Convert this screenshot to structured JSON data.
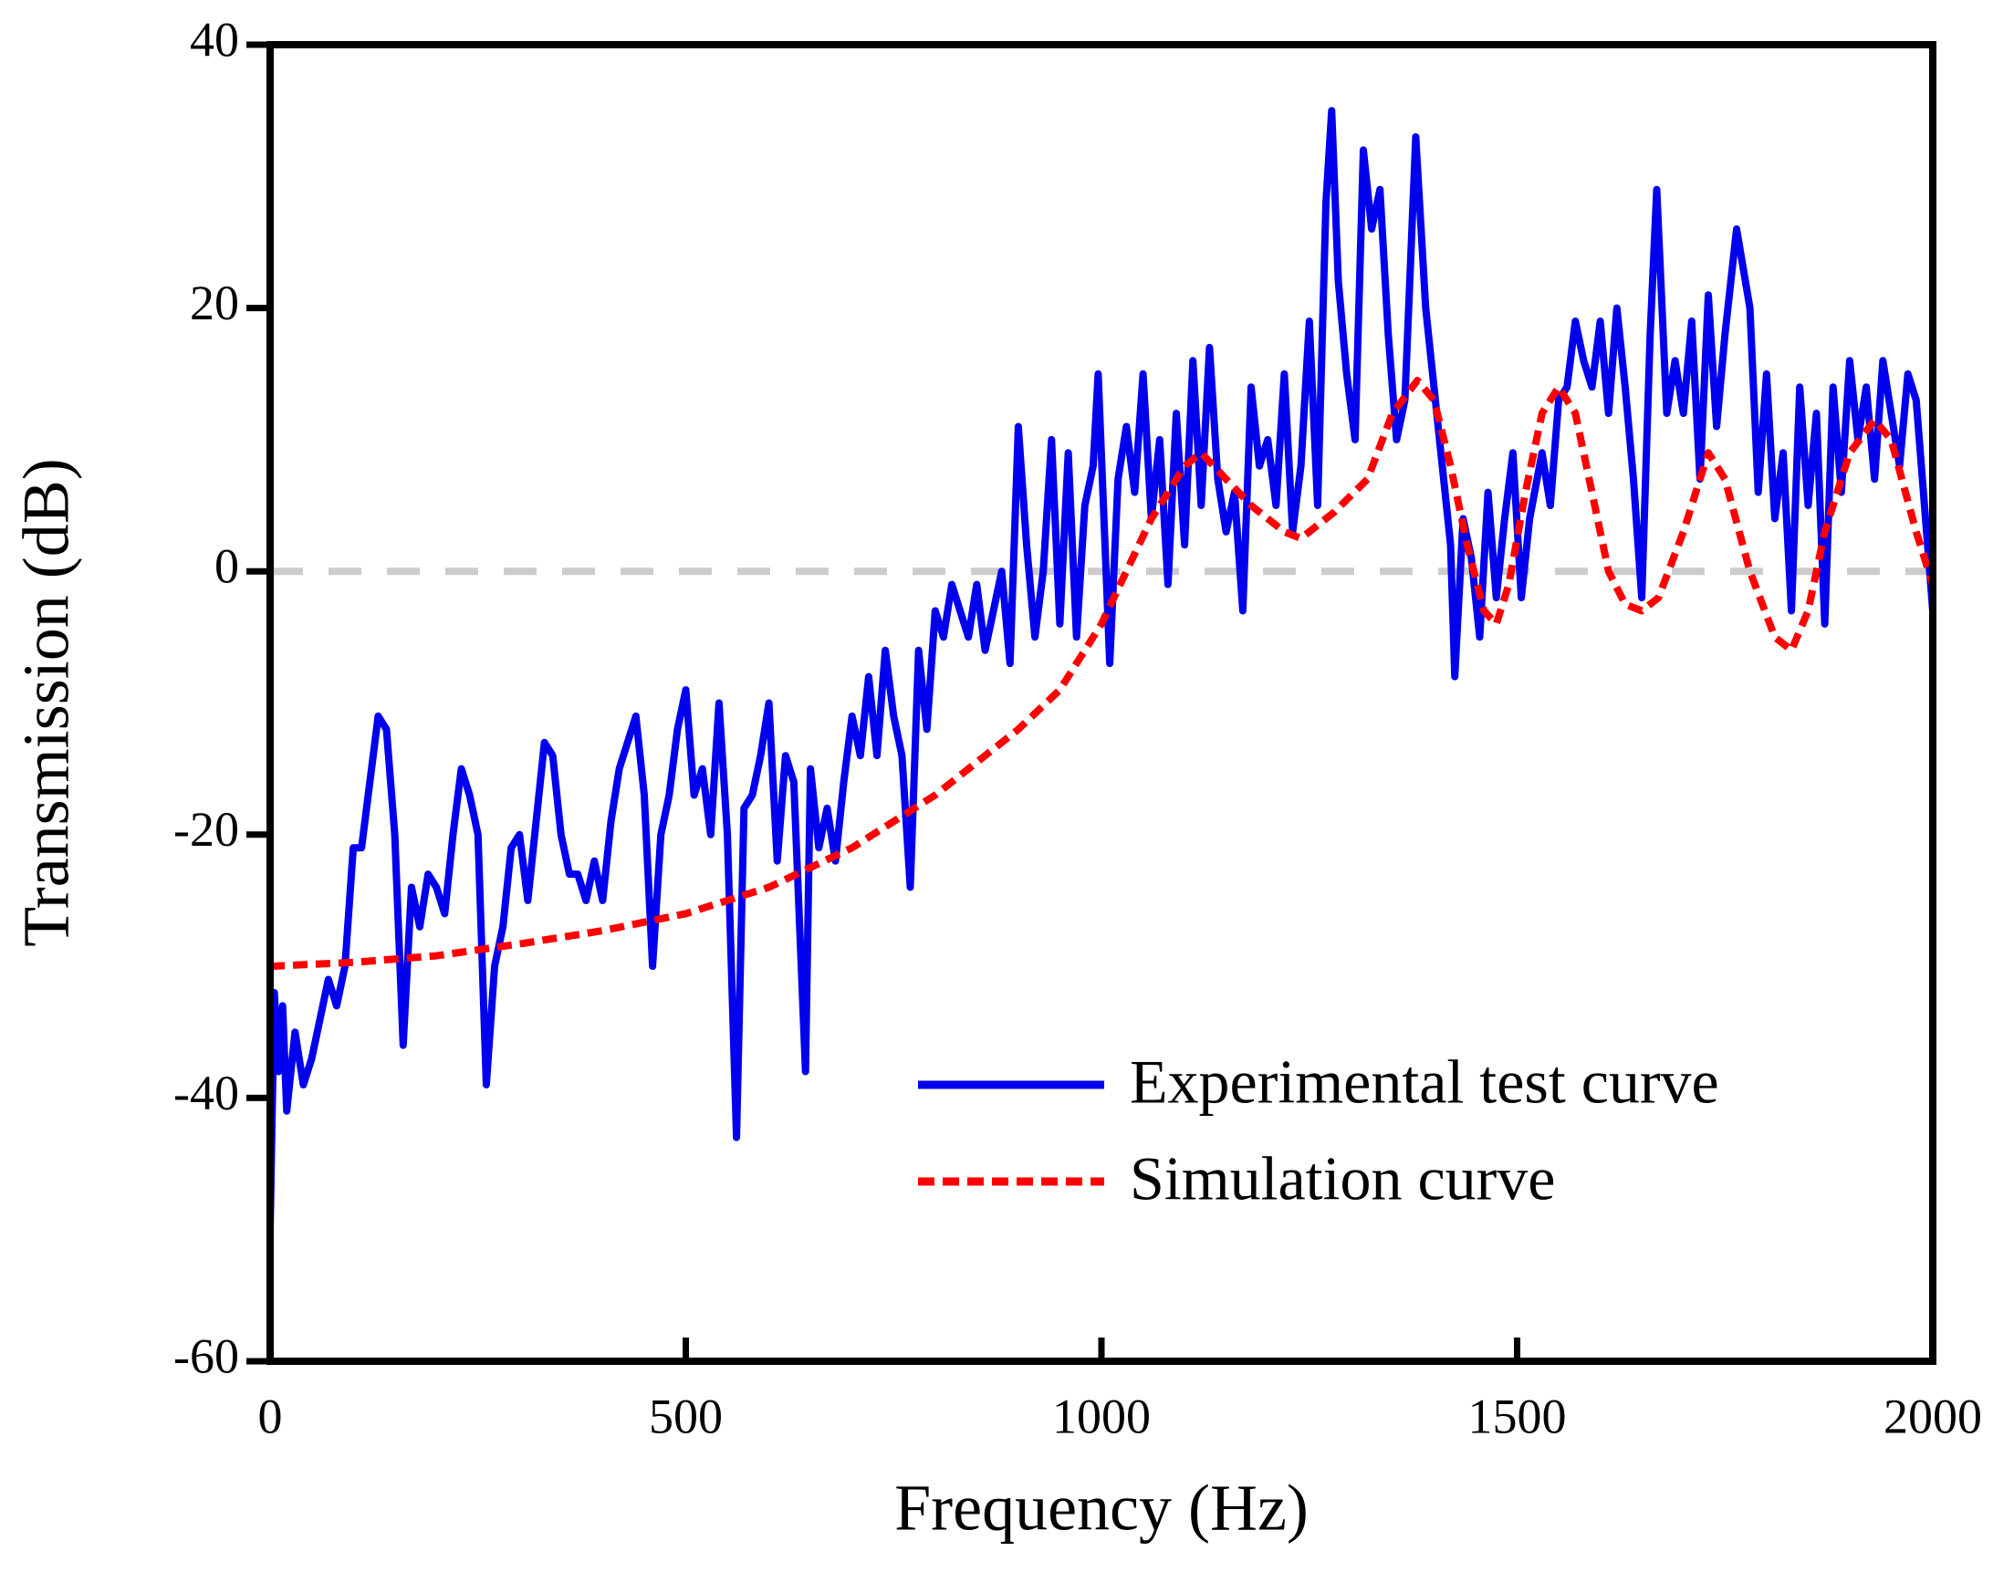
{
  "chart_data": {
    "type": "line",
    "x_label": "Frequency (Hz)",
    "y_label": "Transmission (dB)",
    "xlim": [
      0,
      2000
    ],
    "ylim": [
      -60,
      40
    ],
    "xticks": [
      0,
      500,
      1000,
      1500,
      2000
    ],
    "yticks": [
      -60,
      -40,
      -20,
      0,
      20,
      40
    ],
    "reference_line": {
      "value": 0,
      "color": "#cccccc"
    },
    "legend": "lower right",
    "series": [
      {
        "name": "Experimental test curve",
        "color": "#0000ee",
        "style": "solid",
        "x": [
          0,
          5,
          10,
          15,
          20,
          30,
          40,
          50,
          60,
          70,
          80,
          90,
          100,
          110,
          120,
          130,
          140,
          150,
          160,
          170,
          180,
          190,
          200,
          210,
          220,
          230,
          240,
          250,
          260,
          270,
          280,
          290,
          300,
          310,
          320,
          330,
          340,
          350,
          360,
          370,
          380,
          390,
          400,
          410,
          420,
          430,
          440,
          450,
          460,
          470,
          480,
          490,
          500,
          510,
          520,
          530,
          540,
          550,
          561,
          570,
          580,
          590,
          600,
          610,
          620,
          630,
          644,
          650,
          660,
          670,
          680,
          690,
          700,
          710,
          720,
          730,
          740,
          750,
          760,
          770,
          780,
          790,
          800,
          810,
          820,
          830,
          840,
          850,
          860,
          870,
          880,
          890,
          900,
          910,
          920,
          930,
          940,
          950,
          960,
          970,
          980,
          990,
          996,
          1010,
          1020,
          1030,
          1040,
          1050,
          1060,
          1070,
          1080,
          1090,
          1100,
          1110,
          1120,
          1130,
          1140,
          1150,
          1160,
          1170,
          1180,
          1190,
          1200,
          1210,
          1220,
          1230,
          1240,
          1250,
          1260,
          1270,
          1277,
          1285,
          1295,
          1305,
          1315,
          1325,
          1335,
          1345,
          1355,
          1365,
          1378,
          1390,
          1400,
          1410,
          1420,
          1425,
          1435,
          1445,
          1455,
          1465,
          1475,
          1485,
          1495,
          1505,
          1515,
          1530,
          1540,
          1550,
          1560,
          1570,
          1580,
          1590,
          1600,
          1610,
          1620,
          1630,
          1640,
          1650,
          1660,
          1668,
          1680,
          1690,
          1700,
          1710,
          1720,
          1730,
          1740,
          1750,
          1764,
          1780,
          1790,
          1800,
          1810,
          1820,
          1830,
          1840,
          1850,
          1860,
          1870,
          1880,
          1890,
          1900,
          1910,
          1920,
          1930,
          1940,
          1950,
          1960,
          1970,
          1980,
          1990,
          2000
        ],
        "values": [
          -50,
          -32,
          -38,
          -33,
          -41,
          -35,
          -39,
          -37,
          -34,
          -31,
          -33,
          -30,
          -21,
          -21,
          -16,
          -11,
          -12,
          -20,
          -36,
          -24,
          -27,
          -23,
          -24,
          -26,
          -20,
          -15,
          -17,
          -20,
          -39,
          -30,
          -27,
          -21,
          -20,
          -25,
          -19,
          -13,
          -14,
          -20,
          -23,
          -23,
          -25,
          -22,
          -25,
          -19,
          -15,
          -13,
          -11,
          -17,
          -30,
          -20,
          -17,
          -12,
          -9,
          -17,
          -15,
          -20,
          -10,
          -20,
          -43,
          -18,
          -17,
          -14,
          -10,
          -22,
          -14,
          -16,
          -38,
          -15,
          -21,
          -18,
          -22,
          -16,
          -11,
          -14,
          -8,
          -14,
          -6,
          -11,
          -14,
          -24,
          -6,
          -12,
          -3,
          -5,
          -1,
          -3,
          -5,
          -1,
          -6,
          -3,
          0,
          -7,
          11,
          2,
          -5,
          0,
          10,
          -4,
          9,
          -5,
          5,
          8,
          15,
          -7,
          7,
          11,
          6,
          15,
          4,
          10,
          -1,
          12,
          2,
          16,
          5,
          17,
          7,
          3,
          6,
          -3,
          14,
          8,
          10,
          5,
          15,
          3,
          8,
          19,
          5,
          28,
          35,
          22,
          15,
          10,
          32,
          26,
          29,
          18,
          10,
          13,
          33,
          20,
          14,
          8,
          2,
          -8,
          4,
          1,
          -5,
          6,
          -2,
          4,
          9,
          -2,
          4,
          9,
          5,
          13,
          14,
          19,
          16,
          14,
          19,
          12,
          20,
          14,
          7,
          -2,
          18,
          29,
          12,
          16,
          12,
          19,
          7,
          21,
          11,
          18,
          26,
          20,
          6,
          15,
          4,
          9,
          -3,
          14,
          5,
          12,
          -4,
          14,
          6,
          16,
          10,
          14,
          7,
          16,
          12,
          8,
          15,
          13,
          5,
          -3
        ]
      },
      {
        "name": "Simulation curve",
        "color": "#ff0000",
        "style": "dashed",
        "x": [
          0,
          100,
          200,
          300,
          400,
          500,
          600,
          700,
          800,
          900,
          950,
          1000,
          1030,
          1060,
          1100,
          1120,
          1150,
          1180,
          1220,
          1240,
          1280,
          1320,
          1350,
          1380,
          1400,
          1420,
          1440,
          1460,
          1475,
          1490,
          1510,
          1530,
          1550,
          1570,
          1590,
          1610,
          1630,
          1650,
          1670,
          1700,
          1730,
          1750,
          1780,
          1810,
          1830,
          1850,
          1870,
          1900,
          1930,
          1950,
          1980,
          2000
        ],
        "values": [
          -30,
          -29.7,
          -29.2,
          -28.3,
          -27.3,
          -26,
          -24,
          -21,
          -17,
          -12,
          -9,
          -4,
          0,
          4,
          8,
          9,
          7,
          5,
          3,
          2.5,
          4.5,
          7,
          12,
          14.5,
          13,
          8,
          2,
          -3,
          -4,
          -1,
          6,
          12,
          14,
          12,
          6,
          0,
          -2.5,
          -3,
          -2,
          3,
          9,
          7,
          0,
          -5,
          -6,
          -3,
          3,
          9,
          11.5,
          10,
          3,
          -1
        ]
      }
    ]
  }
}
